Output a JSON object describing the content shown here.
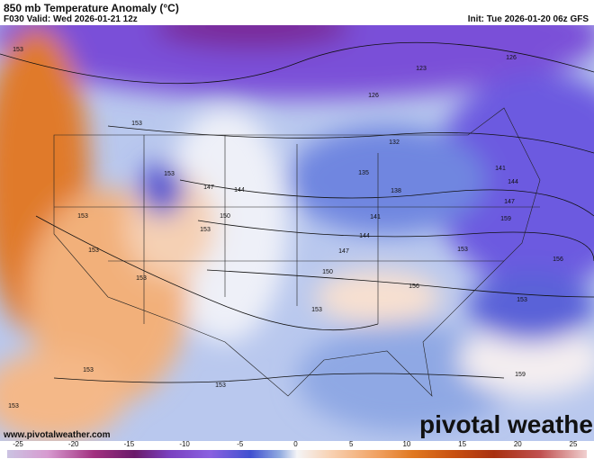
{
  "header": {
    "title": "850 mb Temperature Anomaly (°C)",
    "valid": "F030 Valid: Wed 2026-01-21 12z",
    "init": "Init: Tue 2026-01-20 06z GFS"
  },
  "footer": {
    "website": "www.pivotalweather.com",
    "logo": "pivotal weather"
  },
  "colorbar": {
    "ticks": [
      -25,
      -20,
      -15,
      -10,
      -5,
      0,
      5,
      10,
      15,
      20,
      25
    ]
  },
  "contour_labels": [
    "153",
    "123",
    "126",
    "126",
    "153",
    "132",
    "141",
    "135",
    "153",
    "147",
    "144",
    "138",
    "144",
    "147",
    "141",
    "150",
    "159",
    "153",
    "144",
    "153",
    "147",
    "153",
    "153",
    "156",
    "150",
    "156",
    "153",
    "153",
    "153",
    "153",
    "153",
    "159",
    "153"
  ]
}
